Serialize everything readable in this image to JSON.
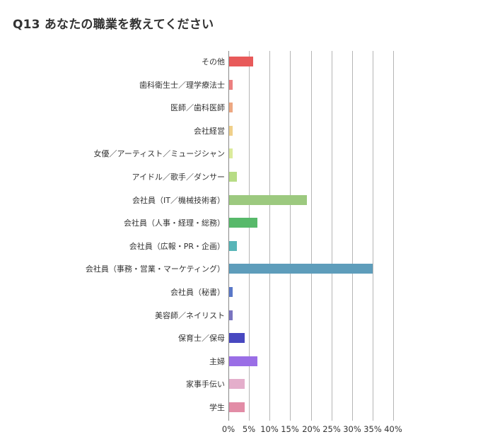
{
  "title": "Q13 あなたの職業を教えてください",
  "chart_data": {
    "type": "bar",
    "orientation": "horizontal",
    "title": "Q13 あなたの職業を教えてください",
    "xlabel": "",
    "ylabel": "",
    "xlim": [
      0,
      40
    ],
    "x_ticks": [
      "0%",
      "5%",
      "10%",
      "15%",
      "20%",
      "25%",
      "30%",
      "35%",
      "40%"
    ],
    "grid": true,
    "legend": "none",
    "categories": [
      "その他",
      "歯科衛生士／理学療法士",
      "医師／歯科医師",
      "会社経営",
      "女優／アーティスト／ミュージシャン",
      "アイドル／歌手／ダンサー",
      "会社員（IT／機械技術者）",
      "会社員（人事・経理・総務）",
      "会社員（広報・PR・企画）",
      "会社員（事務・営業・マーケティング）",
      "会社員（秘書）",
      "美容師／ネイリスト",
      "保育士／保母",
      "主婦",
      "家事手伝い",
      "学生"
    ],
    "values": [
      6,
      1,
      1,
      1,
      1,
      2,
      19,
      7,
      2,
      35,
      1,
      1,
      4,
      7,
      4,
      4
    ],
    "colors": [
      "#e85a5a",
      "#ec8080",
      "#eda882",
      "#f0d08a",
      "#dceb9c",
      "#b7dc85",
      "#9cc97f",
      "#57b96a",
      "#58b5b8",
      "#5e9dbb",
      "#5a78c8",
      "#7a74c0",
      "#4848c0",
      "#9a6ee6",
      "#e4aecb",
      "#e28ca6"
    ]
  }
}
